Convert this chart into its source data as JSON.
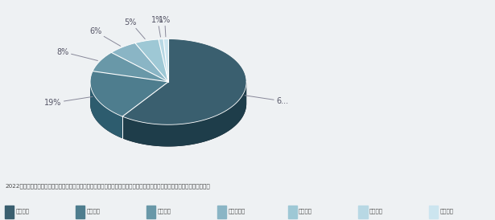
{
  "labels": [
    "游戏收入",
    "电竞直播",
    "游戏研发",
    "俱乐部运营",
    "赛事举办",
    "电竞教育",
    "设备制造"
  ],
  "values": [
    60,
    19,
    8,
    6,
    5,
    1,
    1
  ],
  "pct_labels": [
    "6...",
    "19%",
    "8%",
    "6%",
    "5%",
    "1%",
    "1%"
  ],
  "colors_top": [
    "#3a5f6f",
    "#4e7d8e",
    "#6998a8",
    "#8ab5c5",
    "#9ec8d5",
    "#b8d8e4",
    "#cce5ef"
  ],
  "colors_side": [
    "#1e3d4a",
    "#2d5c6e",
    "#3d7485",
    "#5a96a8",
    "#72aabb",
    "#90c4d2",
    "#aad5e2"
  ],
  "background_color": "#eef1f3",
  "title_line1": "2022年四川电竞产业收入构成比例（游戏收入、电竞直播、游戏研发、赛事举办、俱乐部运营、电竞教育、设备制造各占比例）",
  "legend_labels": [
    "游戏收入",
    "电竞直播",
    "游戏研发",
    "俱乐部运营",
    "赛事举办",
    "电竞教育",
    "设备制造"
  ],
  "text_color": "#4a4a4a",
  "label_color": "#555566",
  "line_color": "#ccdddd",
  "start_angle": 90,
  "depth_ratio": 0.22
}
